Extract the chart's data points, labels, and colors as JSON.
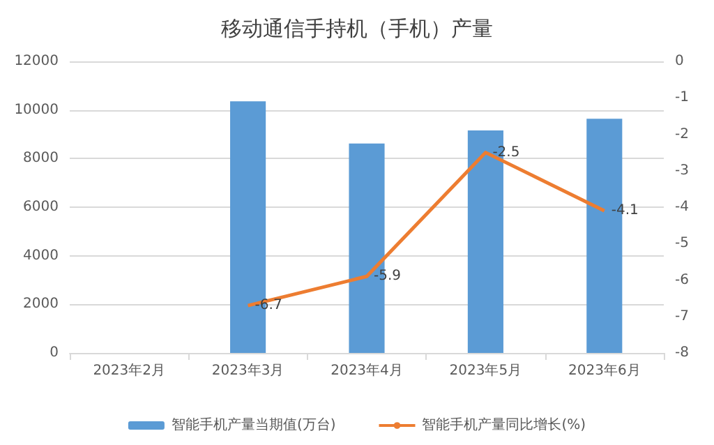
{
  "chart_data": {
    "type": "bar",
    "title": "移动通信手持机（手机）产量",
    "categories": [
      "2023年2月",
      "2023年3月",
      "2023年4月",
      "2023年5月",
      "2023年6月"
    ],
    "series": [
      {
        "name": "智能手机产量当期值(万台)",
        "color": "#5b9bd5",
        "values": [
          null,
          10360,
          8620,
          9160,
          9640
        ]
      },
      {
        "name": "智能手机产量同比增长(%)",
        "type": "line",
        "axis": "y2",
        "color": "#ed7d31",
        "values": [
          null,
          -6.7,
          -5.9,
          -2.5,
          -4.1
        ],
        "value_labels": [
          null,
          "-6.7",
          "-5.9",
          "-2.5",
          "-4.1"
        ]
      }
    ],
    "ylim": [
      0,
      12000
    ],
    "yticks": [
      0,
      2000,
      4000,
      6000,
      8000,
      10000,
      12000
    ],
    "y2lim": [
      -8,
      0
    ],
    "y2ticks": [
      -8,
      -7,
      -6,
      -5,
      -4,
      -3,
      -2,
      -1,
      0
    ],
    "grid": "y",
    "legend": "bottom",
    "marker": "none"
  }
}
